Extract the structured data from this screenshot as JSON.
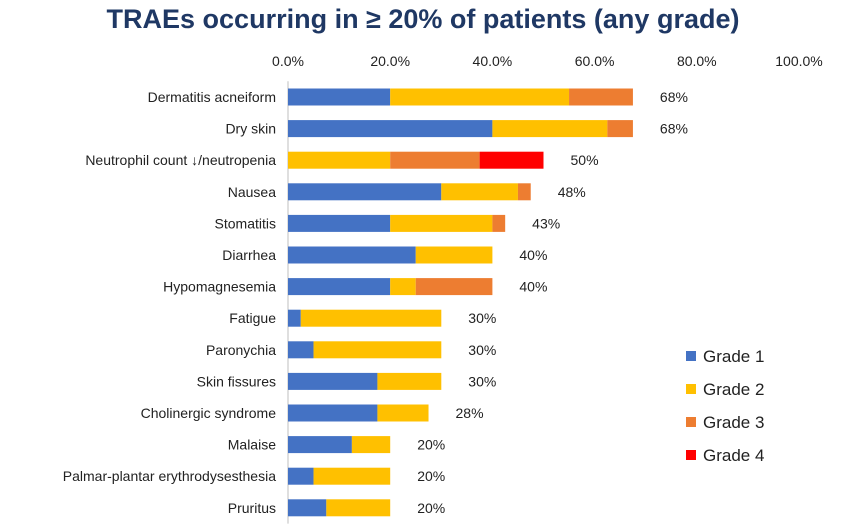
{
  "chart_data": {
    "type": "bar",
    "orientation": "horizontal",
    "stacked": true,
    "title": "TRAEs occurring in ≥ 20% of patients (any grade)",
    "xlabel": "",
    "ylabel": "",
    "xlim": [
      0,
      100
    ],
    "xticks": [
      0,
      20,
      40,
      60,
      80,
      100
    ],
    "xtick_labels": [
      "0.0%",
      "20.0%",
      "40.0%",
      "60.0%",
      "80.0%",
      "100.0%"
    ],
    "categories": [
      "Dermatitis acneiform",
      "Dry skin",
      "Neutrophil count ↓/neutropenia",
      "Nausea",
      "Stomatitis",
      "Diarrhea",
      "Hypomagnesemia",
      "Fatigue",
      "Paronychia",
      "Skin fissures",
      "Cholinergic syndrome",
      "Malaise",
      "Palmar-plantar erythrodysesthesia",
      "Pruritus"
    ],
    "series": [
      {
        "name": "Grade 1",
        "color": "#4472c4",
        "values": [
          20,
          40,
          0,
          30,
          20,
          25,
          20,
          2.5,
          5,
          17.5,
          17.5,
          12.5,
          5,
          7.5
        ]
      },
      {
        "name": "Grade 2",
        "color": "#ffc000",
        "values": [
          35,
          22.5,
          20,
          15,
          20,
          15,
          5,
          27.5,
          25,
          12.5,
          10,
          7.5,
          15,
          12.5
        ]
      },
      {
        "name": "Grade 3",
        "color": "#ed7d31",
        "values": [
          12.5,
          5,
          17.5,
          2.5,
          2.5,
          0,
          15,
          0,
          0,
          0,
          0,
          0,
          0,
          0
        ]
      },
      {
        "name": "Grade 4",
        "color": "#ff0000",
        "values": [
          0,
          0,
          12.5,
          0,
          0,
          0,
          0,
          0,
          0,
          0,
          0,
          0,
          0,
          0
        ]
      }
    ],
    "totals": [
      68,
      68,
      50,
      48,
      43,
      40,
      40,
      30,
      30,
      30,
      28,
      20,
      20,
      20
    ],
    "total_labels": [
      "68%",
      "68%",
      "50%",
      "48%",
      "43%",
      "40%",
      "40%",
      "30%",
      "30%",
      "30%",
      "28%",
      "20%",
      "20%",
      "20%"
    ],
    "legend_position": "bottom-right",
    "grid": false
  }
}
